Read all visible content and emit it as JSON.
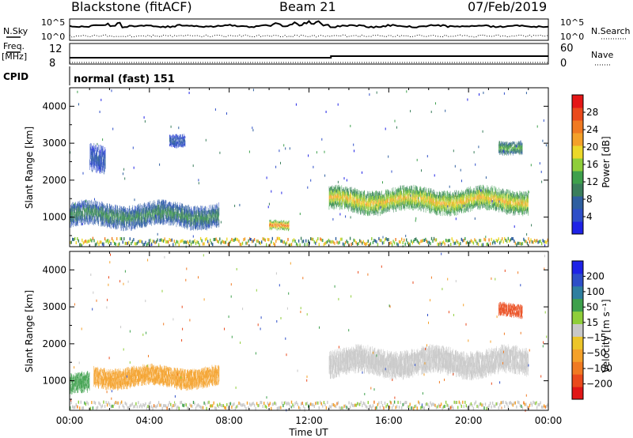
{
  "header": {
    "station": "Blackstone (fitACF)",
    "beam": "Beam 21",
    "date": "07/Feb/2019"
  },
  "side_labels": {
    "nsky": "N.Sky",
    "nsearch": "N.Search",
    "freq": "Freq.",
    "freq_unit": "[MHz]",
    "nave": "Nave",
    "cpid": "CPID",
    "cpid_value": "normal (fast) 151"
  },
  "noise_axis": {
    "left_ticks": [
      "10^5",
      "10^0"
    ],
    "right_ticks": [
      "10^5",
      "10^0"
    ]
  },
  "freq_axis": {
    "left_ticks": [
      "12",
      "8"
    ],
    "right_ticks": [
      "60",
      "0"
    ]
  },
  "colors": {
    "power_scale": [
      "#1e22e6",
      "#2e4ec8",
      "#2f5fa0",
      "#3a7e5c",
      "#3ea04c",
      "#8fce3a",
      "#ecd82a",
      "#f4a12a",
      "#f07a22",
      "#ea4a1c",
      "#e51616"
    ],
    "velocity_scale": [
      "#e01616",
      "#ea4a1c",
      "#f07a22",
      "#f4a12a",
      "#ecc52a",
      "#c8c8c8",
      "#8fce3a",
      "#3ea04c",
      "#2f7fa0",
      "#2e4ec8",
      "#1e22e6"
    ],
    "ground_gray": "#bdbdbd"
  },
  "chart_data": [
    {
      "type": "heatmap",
      "name": "power",
      "ylabel": "Slant Range [km]",
      "ylim": [
        200,
        4500
      ],
      "xlim": [
        "00:00",
        "24:00"
      ],
      "yticks": [
        1000,
        2000,
        3000,
        4000
      ],
      "colorbar": {
        "label": "Power [dB]",
        "ticks": [
          4,
          8,
          12,
          16,
          20,
          24,
          28
        ],
        "range": [
          0,
          32
        ]
      },
      "features": [
        {
          "t_start": 0.0,
          "t_end": 7.5,
          "range_start": 700,
          "range_end": 1400,
          "value": 10
        },
        {
          "t_start": 1.0,
          "t_end": 1.8,
          "range_start": 2200,
          "range_end": 3000,
          "value": 6
        },
        {
          "t_start": 5.0,
          "t_end": 5.8,
          "range_start": 2900,
          "range_end": 3300,
          "value": 6
        },
        {
          "t_start": 10.0,
          "t_end": 11.0,
          "range_start": 600,
          "range_end": 900,
          "value": 22
        },
        {
          "t_start": 13.0,
          "t_end": 23.0,
          "range_start": 1100,
          "range_end": 1800,
          "value": 18
        },
        {
          "t_start": 21.5,
          "t_end": 22.7,
          "range_start": 2700,
          "range_end": 3100,
          "value": 12
        }
      ]
    },
    {
      "type": "heatmap",
      "name": "velocity",
      "ylabel": "Slant Range [km]",
      "xlabel": "Time UT",
      "ylim": [
        200,
        4500
      ],
      "xlim": [
        "00:00",
        "24:00"
      ],
      "yticks": [
        1000,
        2000,
        3000,
        4000
      ],
      "xticks": [
        "00:00",
        "04:00",
        "08:00",
        "12:00",
        "16:00",
        "20:00",
        "00:00"
      ],
      "colorbar": {
        "label": "Velocity [m s⁻¹]",
        "ticks": [
          "200",
          "100",
          "50",
          "15",
          "−15",
          "−50",
          "−100",
          "−200"
        ]
      },
      "features": [
        {
          "t_start": 0.0,
          "t_end": 1.0,
          "range_start": 600,
          "range_end": 1200,
          "value": 60
        },
        {
          "t_start": 1.2,
          "t_end": 7.5,
          "range_start": 800,
          "range_end": 1400,
          "value": -40
        },
        {
          "t_start": 13.0,
          "t_end": 23.0,
          "range_start": 1100,
          "range_end": 1900,
          "value": 0
        },
        {
          "t_start": 21.5,
          "t_end": 22.7,
          "range_start": 2700,
          "range_end": 3100,
          "value": -180
        }
      ]
    }
  ]
}
